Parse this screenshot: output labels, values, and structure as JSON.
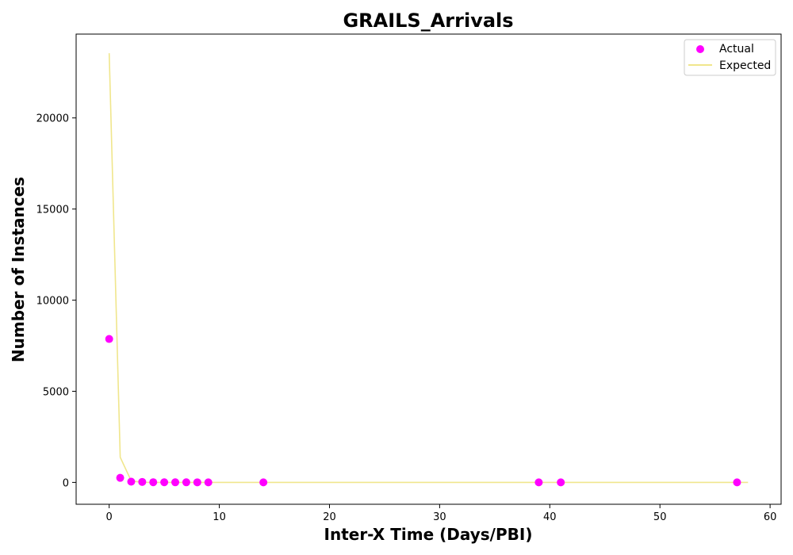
{
  "chart_data": {
    "type": "scatter",
    "title": "GRAILS_Arrivals",
    "xlabel": "Inter-X Time (Days/PBI)",
    "ylabel": "Number of Instances",
    "xlim": [
      -3,
      61
    ],
    "ylim": [
      -1200,
      24600
    ],
    "xticks": [
      0,
      10,
      20,
      30,
      40,
      50,
      60
    ],
    "yticks": [
      0,
      5000,
      10000,
      15000,
      20000
    ],
    "grid": false,
    "legend_position": "top-right",
    "series": [
      {
        "name": "Actual",
        "kind": "scatter",
        "color": "#ff00ff",
        "x": [
          0,
          1,
          2,
          3,
          4,
          5,
          6,
          7,
          8,
          9,
          14,
          39,
          41,
          57
        ],
        "y": [
          7870,
          250,
          40,
          25,
          10,
          8,
          6,
          5,
          4,
          3,
          2,
          1,
          1,
          1
        ]
      },
      {
        "name": "Expected",
        "kind": "line",
        "color": "#f0e68c",
        "x": [
          0,
          1,
          2,
          3,
          4,
          5,
          6,
          7,
          8,
          9,
          10,
          14,
          20,
          30,
          40,
          50,
          58
        ],
        "y": [
          23550,
          1380,
          80,
          5,
          0,
          0,
          0,
          0,
          0,
          0,
          0,
          0,
          0,
          0,
          0,
          0,
          0
        ]
      }
    ]
  }
}
